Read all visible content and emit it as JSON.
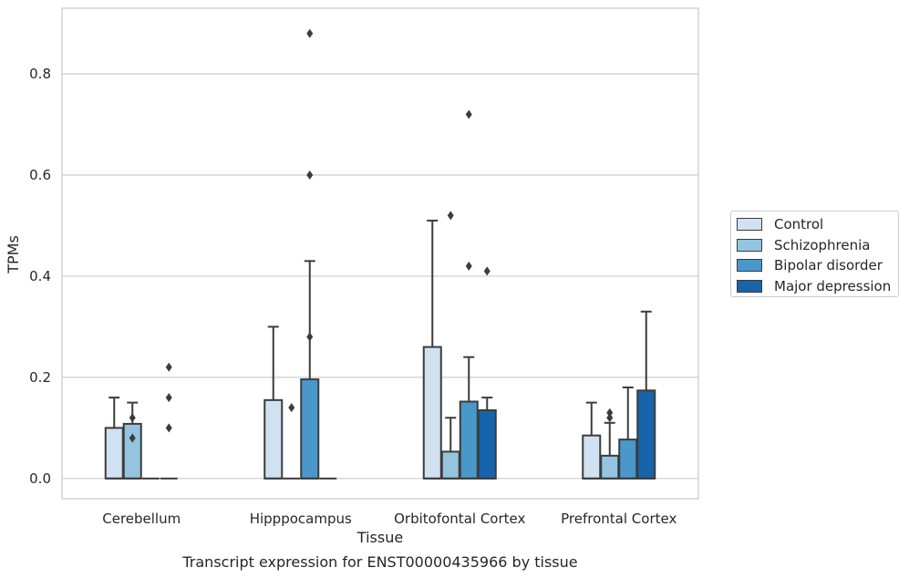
{
  "chart_data": {
    "type": "box",
    "title": "Transcript expression for ENST00000435966 by tissue",
    "xlabel": "Tissue",
    "ylabel": "TPMs",
    "ylim": [
      -0.04,
      0.93
    ],
    "yticks": [
      "0.0",
      "0.2",
      "0.4",
      "0.6",
      "0.8"
    ],
    "grid": true,
    "legend_position": "right",
    "categories": [
      "Cerebellum",
      "Hipppocampus",
      "Orbitofontal Cortex",
      "Prefrontal Cortex"
    ],
    "series": [
      {
        "name": "Control",
        "color": "#d0e1f2",
        "boxes": [
          {
            "q1": 0,
            "q3": 0.1,
            "median": 0,
            "whisker_low": 0,
            "whisker_high": 0.16,
            "outliers": []
          },
          {
            "q1": 0,
            "q3": 0.155,
            "median": 0,
            "whisker_low": 0,
            "whisker_high": 0.3,
            "outliers": []
          },
          {
            "q1": 0,
            "q3": 0.26,
            "median": 0,
            "whisker_low": 0,
            "whisker_high": 0.51,
            "outliers": []
          },
          {
            "q1": 0,
            "q3": 0.085,
            "median": 0,
            "whisker_low": 0,
            "whisker_high": 0.15,
            "outliers": []
          }
        ]
      },
      {
        "name": "Schizophrenia",
        "color": "#94c4df",
        "boxes": [
          {
            "q1": 0,
            "q3": 0.108,
            "median": 0,
            "whisker_low": 0,
            "whisker_high": 0.15,
            "outliers": [
              0.12,
              0.08
            ]
          },
          {
            "q1": 0,
            "q3": 0,
            "median": 0,
            "whisker_low": 0,
            "whisker_high": 0,
            "outliers": [
              0.14
            ]
          },
          {
            "q1": 0,
            "q3": 0.053,
            "median": 0,
            "whisker_low": 0,
            "whisker_high": 0.12,
            "outliers": [
              0.52
            ]
          },
          {
            "q1": 0,
            "q3": 0.045,
            "median": 0,
            "whisker_low": 0,
            "whisker_high": 0.11,
            "outliers": [
              0.13,
              0.12
            ]
          }
        ]
      },
      {
        "name": "Bipolar disorder",
        "color": "#4a98c9",
        "boxes": [
          {
            "q1": 0,
            "q3": 0,
            "median": 0,
            "whisker_low": 0,
            "whisker_high": 0,
            "outliers": []
          },
          {
            "q1": 0,
            "q3": 0.196,
            "median": 0,
            "whisker_low": 0,
            "whisker_high": 0.43,
            "outliers": [
              0.88,
              0.6,
              0.28
            ]
          },
          {
            "q1": 0,
            "q3": 0.152,
            "median": 0,
            "whisker_low": 0,
            "whisker_high": 0.24,
            "outliers": [
              0.72,
              0.42
            ]
          },
          {
            "q1": 0,
            "q3": 0.077,
            "median": 0,
            "whisker_low": 0,
            "whisker_high": 0.18,
            "outliers": []
          }
        ]
      },
      {
        "name": "Major depression",
        "color": "#1764ab",
        "boxes": [
          {
            "q1": 0,
            "q3": 0,
            "median": 0,
            "whisker_low": 0,
            "whisker_high": 0,
            "outliers": [
              0.22,
              0.16,
              0.1
            ]
          },
          {
            "q1": 0,
            "q3": 0,
            "median": 0,
            "whisker_low": 0,
            "whisker_high": 0,
            "outliers": []
          },
          {
            "q1": 0,
            "q3": 0.135,
            "median": 0,
            "whisker_low": 0,
            "whisker_high": 0.16,
            "outliers": [
              0.41
            ]
          },
          {
            "q1": 0,
            "q3": 0.174,
            "median": 0,
            "whisker_low": 0,
            "whisker_high": 0.33,
            "outliers": []
          }
        ]
      }
    ]
  }
}
